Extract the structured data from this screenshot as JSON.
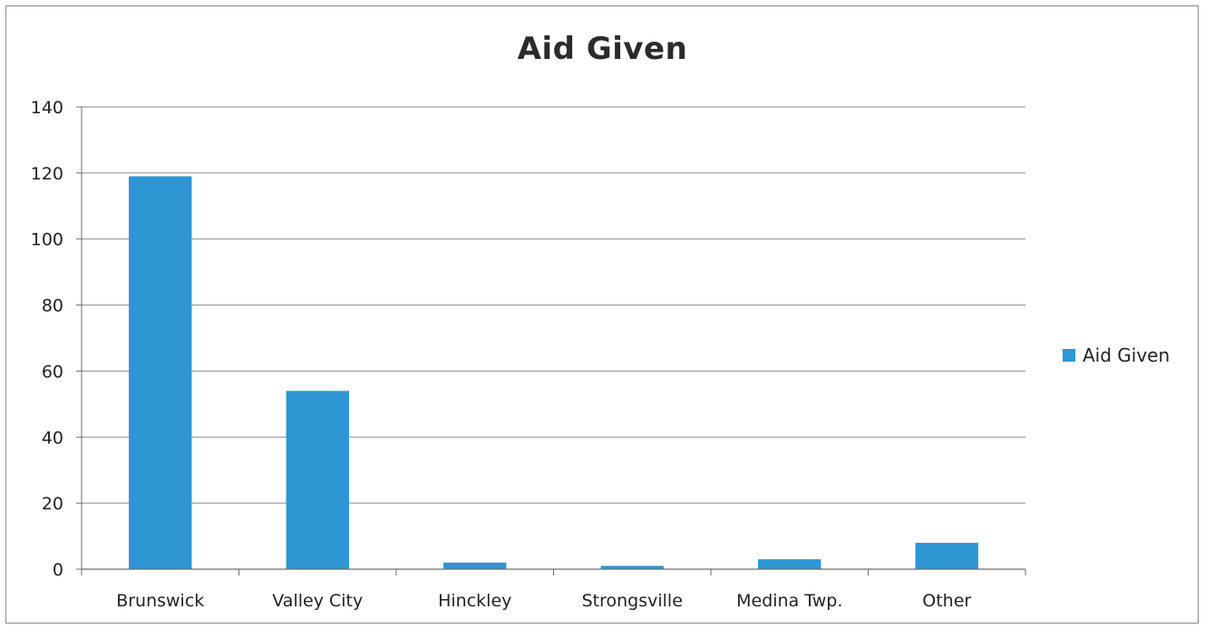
{
  "chart_data": {
    "type": "bar",
    "title": "Aid Given",
    "xlabel": "",
    "ylabel": "",
    "categories": [
      "Brunswick",
      "Valley City",
      "Hinckley",
      "Strongsville",
      "Medina Twp.",
      "Other"
    ],
    "series": [
      {
        "name": "Aid Given",
        "values": [
          119,
          54,
          2,
          1,
          3,
          8
        ],
        "color": "#2e96d3"
      }
    ],
    "ylim": [
      0,
      140
    ],
    "yticks": [
      "0",
      "20",
      "40",
      "60",
      "80",
      "100",
      "120",
      "140"
    ],
    "grid": true,
    "legend": "right"
  }
}
